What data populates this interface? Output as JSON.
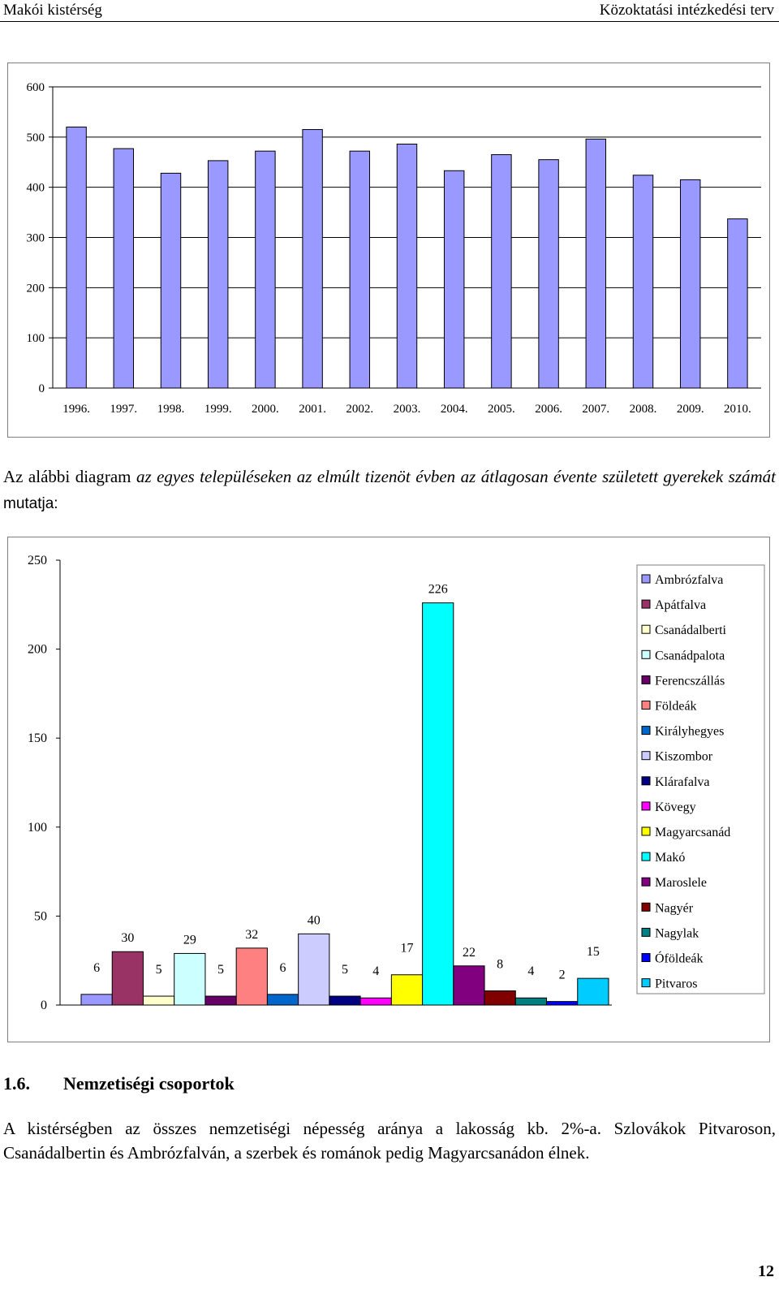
{
  "header": {
    "left": "Makói kistérség",
    "right": "Közoktatási intézkedési terv"
  },
  "chart_data": [
    {
      "type": "bar",
      "categories": [
        "1996.",
        "1997.",
        "1998.",
        "1999.",
        "2000.",
        "2001.",
        "2002.",
        "2003.",
        "2004.",
        "2005.",
        "2006.",
        "2007.",
        "2008.",
        "2009.",
        "2010."
      ],
      "values": [
        520,
        477,
        428,
        453,
        472,
        515,
        472,
        486,
        433,
        465,
        455,
        496,
        424,
        415,
        337
      ],
      "ylim": [
        0,
        600
      ],
      "yticks": [
        "0",
        "100",
        "200",
        "300",
        "400",
        "500",
        "600"
      ],
      "bar_color": "#9999ff",
      "grid": true,
      "legend": "none"
    },
    {
      "type": "bar",
      "categories": [
        "Ambrózfalva",
        "Apátfalva",
        "Csanádalberti",
        "Csanádpalota",
        "Ferencszállás",
        "Földeák",
        "Királyhegyes",
        "Kiszombor",
        "Klárafalva",
        "Kövegy",
        "Magyarcsanád",
        "Makó",
        "Maroslele",
        "Nagyér",
        "Nagylak",
        "Óföldeák",
        "Pitvaros"
      ],
      "values": [
        6,
        30,
        5,
        29,
        5,
        32,
        6,
        40,
        5,
        4,
        17,
        226,
        22,
        8,
        4,
        2,
        15
      ],
      "data_labels": [
        "6",
        "30",
        "5",
        "29",
        "5",
        "32",
        "6",
        "40",
        "5",
        "4",
        "17",
        "226",
        "22",
        "8",
        "4",
        "2",
        "15"
      ],
      "colors": [
        "#9999ff",
        "#993366",
        "#ffffcc",
        "#ccffff",
        "#660066",
        "#ff8080",
        "#0066cc",
        "#ccccff",
        "#000080",
        "#ff00ff",
        "#ffff00",
        "#00ffff",
        "#800080",
        "#800000",
        "#008080",
        "#0000ff",
        "#00ccff"
      ],
      "ylim": [
        0,
        250
      ],
      "yticks": [
        "0",
        "50",
        "100",
        "150",
        "200",
        "250"
      ],
      "grid": false,
      "legend": "right"
    }
  ],
  "intro": {
    "start": "Az alábbi diagram ",
    "emphasis": "az egyes településeken az elmúlt tizenöt évben az átlagosan évente született gyerekek számát",
    "end": " mutatja:"
  },
  "section": {
    "number": "1.6.",
    "title": "Nemzetiségi csoportok"
  },
  "body": "A kistérségben az összes nemzetiségi népesség aránya a lakosság kb. 2%-a. Szlovákok Pitvaroson, Csanádalbertin és Ambrózfalván, a szerbek és románok pedig Magyarcsanádon élnek.",
  "page_number": "12"
}
